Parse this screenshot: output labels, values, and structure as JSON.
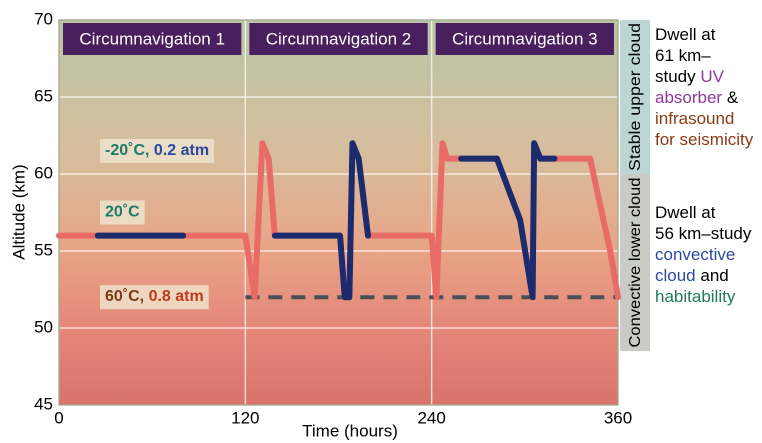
{
  "chart_data": {
    "type": "line",
    "xlabel": "Time (hours)",
    "ylabel": "Altitude (km)",
    "xlim": [
      0,
      360
    ],
    "xticks": [
      0,
      120,
      240,
      360
    ],
    "ylim": [
      45,
      70
    ],
    "yticks": [
      45,
      50,
      55,
      60,
      65,
      70
    ],
    "grid": true,
    "series": [
      {
        "color": "#e86b66",
        "x": [
          0,
          25,
          null,
          80,
          120,
          126,
          131,
          135,
          139,
          null,
          199,
          240,
          243,
          247,
          250,
          259,
          null,
          319,
          342,
          355,
          360
        ],
        "values": [
          56,
          56,
          null,
          56,
          56,
          52,
          62,
          61,
          56,
          null,
          56,
          56,
          52,
          62,
          61,
          61,
          null,
          61,
          61,
          55,
          52
        ]
      },
      {
        "color": "#1c2a6e",
        "x": [
          25,
          80,
          null,
          139,
          181,
          184,
          187,
          189,
          193,
          199,
          null,
          259,
          282,
          297,
          305,
          306,
          310,
          319
        ],
        "values": [
          56,
          56,
          null,
          56,
          56,
          52,
          52,
          62,
          61,
          56,
          null,
          61,
          61,
          57,
          52,
          62,
          61,
          61
        ]
      }
    ],
    "reference_line": {
      "value": 52,
      "color": "#4a4f57",
      "x": [
        120,
        360
      ]
    },
    "segments": [
      {
        "label": "Circumnavigation 1",
        "x": [
          0,
          120
        ]
      },
      {
        "label": "Circumnavigation 2",
        "x": [
          120,
          240
        ]
      },
      {
        "label": "Circumnavigation 3",
        "x": [
          240,
          360
        ]
      }
    ],
    "condition_labels": [
      {
        "y": 61.5,
        "parts": [
          {
            "text": "-20˚C, ",
            "color": "#1e7a6a"
          },
          {
            "text": "0.2 atm",
            "color": "#2a4aa0"
          }
        ]
      },
      {
        "y": 57.5,
        "parts": [
          {
            "text": "20˚C",
            "color": "#1e7a6a"
          }
        ]
      },
      {
        "y": 52,
        "parts": [
          {
            "text": "60˚C, ",
            "color": "#7a3a1a"
          },
          {
            "text": "0.8 atm",
            "color": "#c0391e"
          }
        ]
      }
    ],
    "cloud_layers": [
      {
        "label": "Stable upper cloud",
        "ylim": [
          60,
          70
        ],
        "color": "#bcd6d3"
      },
      {
        "label": "Convective lower cloud",
        "ylim": [
          48.5,
          60
        ],
        "color": "#c9cbc6"
      }
    ],
    "notes": [
      [
        [
          {
            "text": "Dwell at",
            "color": "#000000"
          }
        ],
        [
          {
            "text": "61 km–",
            "color": "#000000"
          }
        ],
        [
          {
            "text": "study ",
            "color": "#000000"
          },
          {
            "text": "UV",
            "color": "#8e3a9a"
          }
        ],
        [
          {
            "text": "absorber",
            "color": "#8e3a9a"
          },
          {
            "text": " &",
            "color": "#000000"
          }
        ],
        [
          {
            "text": "infrasound",
            "color": "#8a3a14"
          }
        ],
        [
          {
            "text": "for seismicity",
            "color": "#8a3a14"
          }
        ]
      ],
      [
        [
          {
            "text": "Dwell at",
            "color": "#000000"
          }
        ],
        [
          {
            "text": "56 km–study",
            "color": "#000000"
          }
        ],
        [
          {
            "text": "convective",
            "color": "#2a4aa0"
          }
        ],
        [
          {
            "text": "cloud",
            "color": "#2a4aa0"
          },
          {
            "text": " and",
            "color": "#000000"
          }
        ],
        [
          {
            "text": "habitability",
            "color": "#1e7a5a"
          }
        ]
      ]
    ]
  }
}
